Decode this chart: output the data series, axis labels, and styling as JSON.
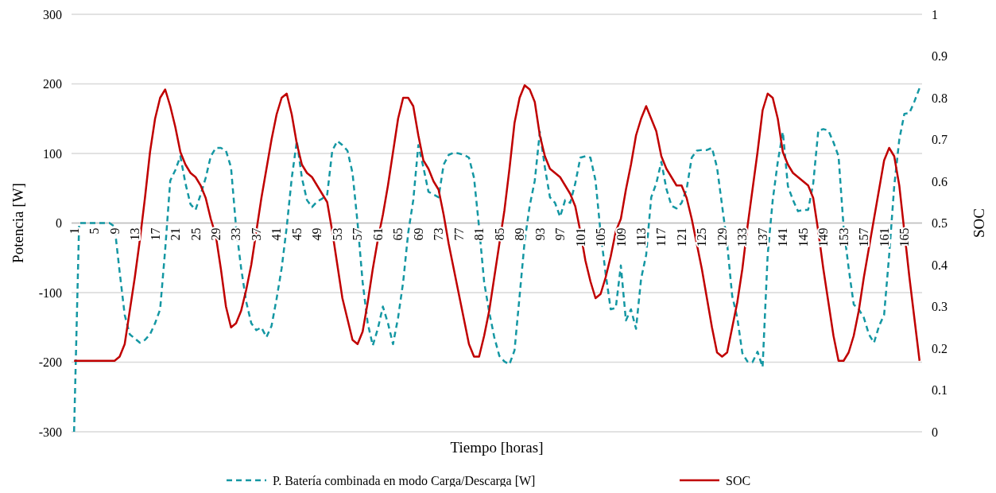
{
  "chart_data": {
    "type": "line",
    "xlabel": "Tiempo [horas]",
    "ylabel": "Potencia [W]",
    "y2label": "SOC",
    "categories": [
      "1",
      null,
      null,
      null,
      "5",
      null,
      null,
      null,
      "9",
      null,
      null,
      null,
      "13",
      null,
      null,
      null,
      "17",
      null,
      null,
      null,
      "21",
      null,
      null,
      null,
      "25",
      null,
      null,
      null,
      "29",
      null,
      null,
      null,
      "33",
      null,
      null,
      null,
      "37",
      null,
      null,
      null,
      "41",
      null,
      null,
      null,
      "45",
      null,
      null,
      null,
      "49",
      null,
      null,
      null,
      "53",
      null,
      null,
      null,
      "57",
      null,
      null,
      null,
      "61",
      null,
      null,
      null,
      "65",
      null,
      null,
      null,
      "69",
      null,
      null,
      null,
      "73",
      null,
      null,
      null,
      "77",
      null,
      null,
      null,
      "81",
      null,
      null,
      null,
      "85",
      null,
      null,
      null,
      "89",
      null,
      null,
      null,
      "93",
      null,
      null,
      null,
      "97",
      null,
      null,
      null,
      "101",
      null,
      null,
      null,
      "105",
      null,
      null,
      null,
      "109",
      null,
      null,
      null,
      "113",
      null,
      null,
      null,
      "117",
      null,
      null,
      null,
      "121",
      null,
      null,
      null,
      "125",
      null,
      null,
      null,
      "129",
      null,
      null,
      null,
      "133",
      null,
      null,
      null,
      "137",
      null,
      null,
      null,
      "141",
      null,
      null,
      null,
      "145",
      null,
      null,
      null,
      "149",
      null,
      null,
      null,
      "153",
      null,
      null,
      null,
      "157",
      null,
      null,
      null,
      "161",
      null,
      null,
      null,
      "165",
      null,
      null,
      null
    ],
    "series": [
      {
        "name": "P. Batería combinada en modo Carga/Descarga [W]",
        "color": "#1497a3",
        "line_style": "dashed",
        "values": [
          -300,
          0,
          0,
          0,
          0,
          0,
          0,
          0,
          -5,
          -70,
          -132,
          -160,
          -166,
          -172,
          -168,
          -160,
          -144,
          -124,
          -38,
          61,
          76,
          96,
          57,
          27,
          19,
          41,
          65,
          96,
          108,
          108,
          104,
          80,
          -6,
          -65,
          -113,
          -144,
          -154,
          -150,
          -164,
          -148,
          -109,
          -65,
          -6,
          65,
          118,
          65,
          33,
          23,
          31,
          35,
          41,
          104,
          118,
          112,
          104,
          72,
          0,
          -85,
          -144,
          -176,
          -152,
          -120,
          -144,
          -174,
          -136,
          -85,
          -14,
          33,
          112,
          80,
          45,
          41,
          37,
          84,
          98,
          101,
          100,
          98,
          94,
          65,
          -6,
          -85,
          -128,
          -164,
          -191,
          -199,
          -203,
          -183,
          -105,
          -26,
          25,
          61,
          131,
          80,
          37,
          29,
          9,
          33,
          29,
          57,
          94,
          96,
          94,
          61,
          -14,
          -73,
          -124,
          -122,
          -61,
          -140,
          -124,
          -152,
          -80,
          -46,
          37,
          57,
          88,
          49,
          25,
          21,
          29,
          49,
          94,
          104,
          105,
          105,
          108,
          80,
          25,
          -30,
          -105,
          -136,
          -187,
          -199,
          -200,
          -185,
          -207,
          -46,
          33,
          88,
          131,
          53,
          33,
          17,
          19,
          19,
          57,
          133,
          135,
          133,
          116,
          96,
          -6,
          -65,
          -117,
          -124,
          -136,
          -160,
          -172,
          -148,
          -132,
          -46,
          53,
          120,
          157,
          158,
          175,
          194
        ]
      },
      {
        "name": "SOC",
        "color": "#c00000",
        "line_style": "solid",
        "axis": "y2",
        "values": [
          0.17,
          0.17,
          0.17,
          0.17,
          0.17,
          0.17,
          0.17,
          0.17,
          0.17,
          0.18,
          0.21,
          0.29,
          0.37,
          0.46,
          0.56,
          0.67,
          0.75,
          0.8,
          0.82,
          0.78,
          0.73,
          0.67,
          0.64,
          0.62,
          0.61,
          0.59,
          0.56,
          0.51,
          0.47,
          0.39,
          0.3,
          0.25,
          0.26,
          0.29,
          0.34,
          0.4,
          0.48,
          0.56,
          0.63,
          0.7,
          0.76,
          0.8,
          0.81,
          0.76,
          0.69,
          0.64,
          0.62,
          0.61,
          0.59,
          0.57,
          0.55,
          0.48,
          0.4,
          0.32,
          0.27,
          0.22,
          0.21,
          0.24,
          0.31,
          0.39,
          0.46,
          0.52,
          0.59,
          0.67,
          0.75,
          0.8,
          0.8,
          0.78,
          0.71,
          0.65,
          0.63,
          0.6,
          0.58,
          0.52,
          0.45,
          0.39,
          0.33,
          0.27,
          0.21,
          0.18,
          0.18,
          0.23,
          0.29,
          0.37,
          0.45,
          0.53,
          0.63,
          0.74,
          0.8,
          0.83,
          0.82,
          0.79,
          0.71,
          0.66,
          0.63,
          0.62,
          0.61,
          0.59,
          0.57,
          0.54,
          0.48,
          0.41,
          0.36,
          0.32,
          0.33,
          0.37,
          0.42,
          0.48,
          0.51,
          0.58,
          0.64,
          0.71,
          0.75,
          0.78,
          0.75,
          0.72,
          0.66,
          0.63,
          0.61,
          0.59,
          0.59,
          0.56,
          0.51,
          0.45,
          0.39,
          0.32,
          0.25,
          0.19,
          0.18,
          0.19,
          0.25,
          0.31,
          0.39,
          0.49,
          0.58,
          0.67,
          0.77,
          0.81,
          0.8,
          0.75,
          0.67,
          0.64,
          0.62,
          0.61,
          0.6,
          0.59,
          0.56,
          0.48,
          0.39,
          0.31,
          0.23,
          0.17,
          0.17,
          0.19,
          0.23,
          0.29,
          0.37,
          0.44,
          0.51,
          0.58,
          0.65,
          0.68,
          0.66,
          0.59,
          0.48,
          0.37,
          0.27,
          0.17
        ]
      }
    ],
    "ylim": [
      -300,
      300
    ],
    "yticks": [
      -300,
      -200,
      -100,
      0,
      100,
      200,
      300
    ],
    "y2lim": [
      0,
      1
    ],
    "y2ticks": [
      0,
      0.1,
      0.2,
      0.3,
      0.4,
      0.5,
      0.6,
      0.7,
      0.8,
      0.9,
      1
    ],
    "grid": "y",
    "legend": "bottom"
  }
}
